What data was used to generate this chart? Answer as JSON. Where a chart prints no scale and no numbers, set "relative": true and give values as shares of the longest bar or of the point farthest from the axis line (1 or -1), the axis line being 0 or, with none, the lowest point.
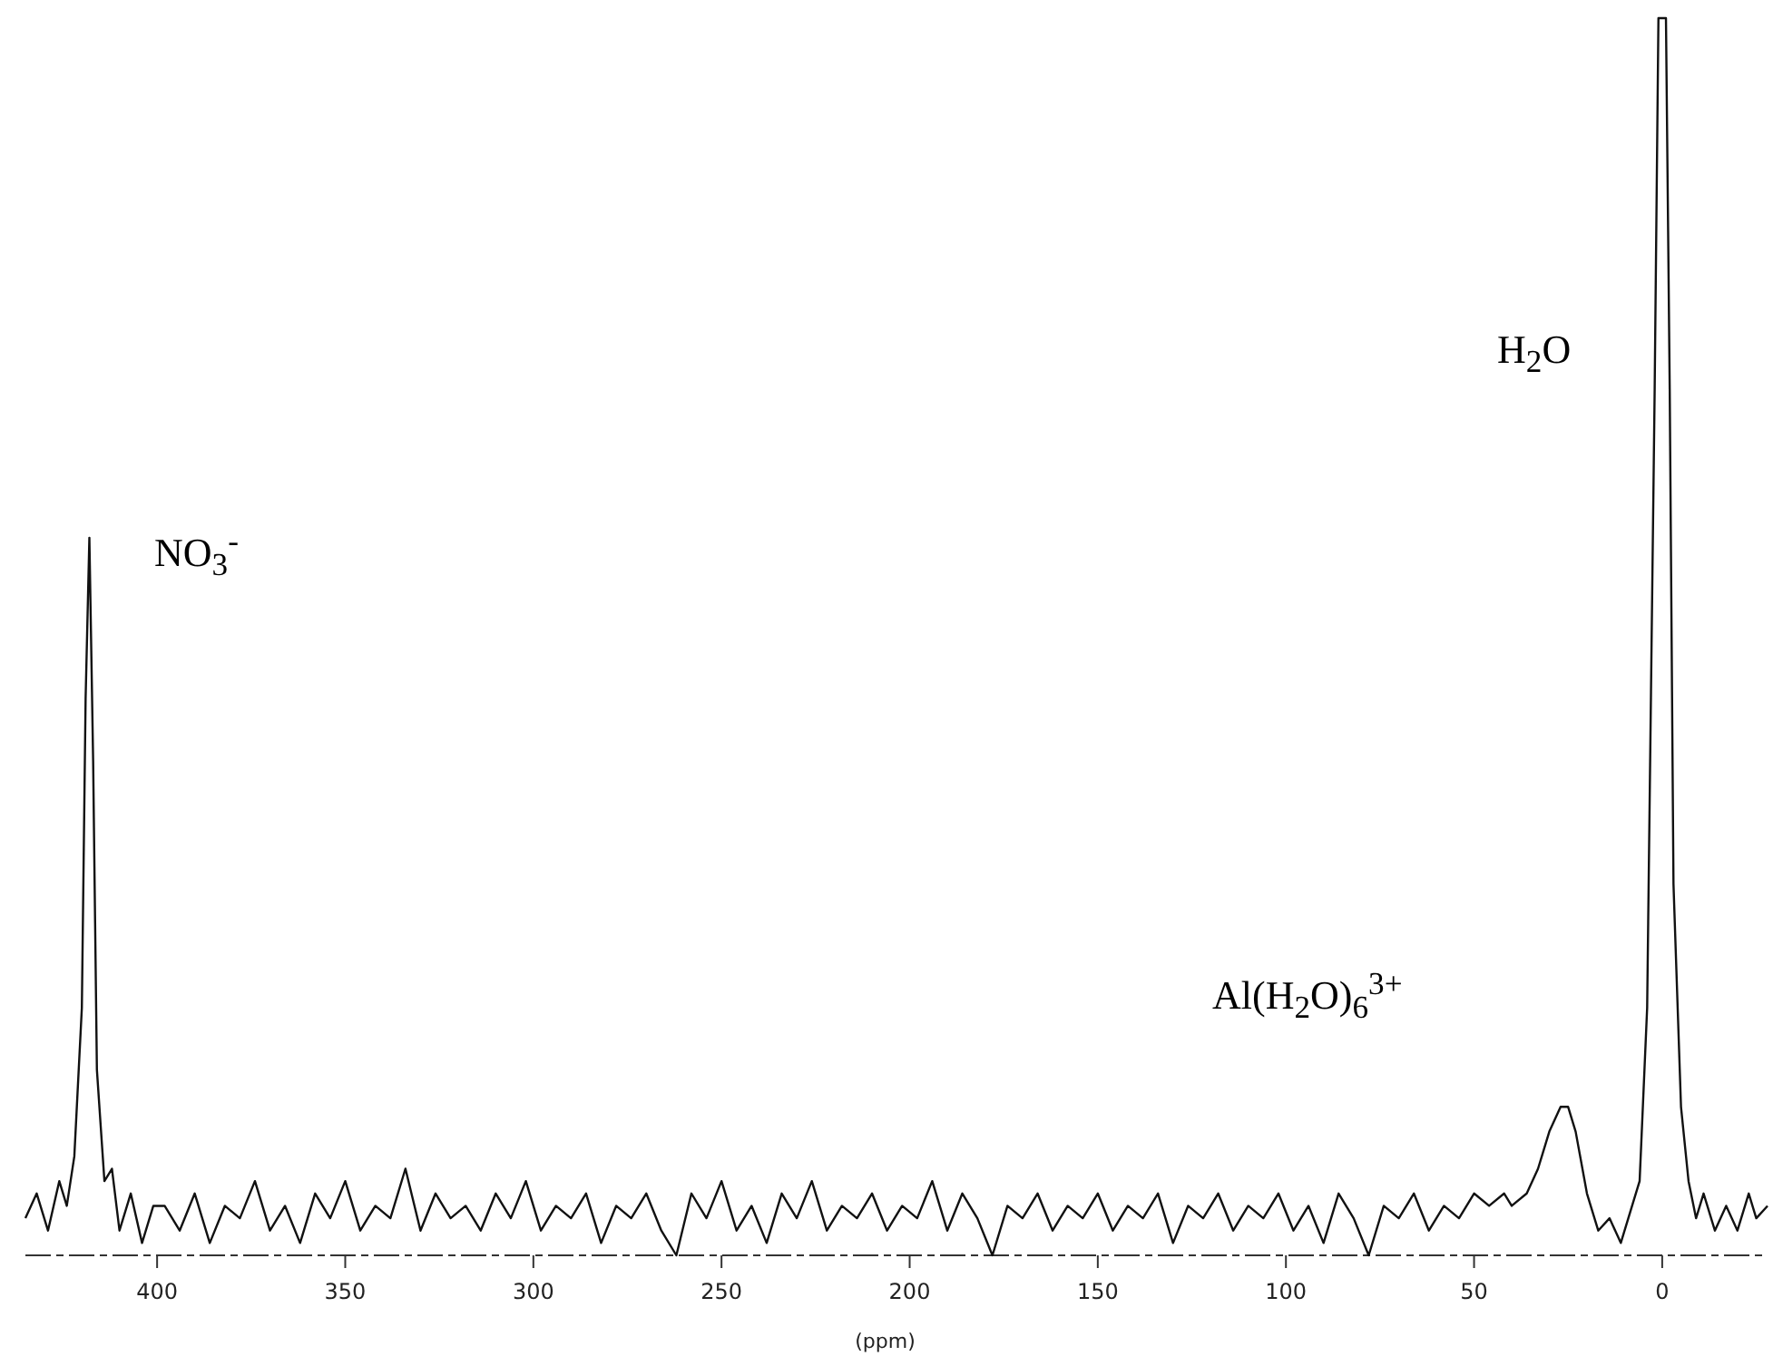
{
  "chart_data": {
    "type": "line",
    "relative": true,
    "xlabel": "(ppm)",
    "xlim": [
      435,
      -28
    ],
    "xticks": [
      400,
      350,
      300,
      250,
      200,
      150,
      100,
      50,
      0
    ],
    "grid": false,
    "marker": "none",
    "line_style": "solid",
    "annotations": [
      "NO$_{3}$$^{-}$",
      "H$_{2}$O",
      "Al(H$_{2}$O)$_{6}$$^{3+}$"
    ],
    "series": [
      {
        "color": "#111111",
        "x": [
          435,
          432,
          429,
          426,
          424,
          422,
          420,
          419,
          418,
          417,
          416,
          414,
          412,
          410,
          407,
          404,
          401,
          398,
          394,
          390,
          386,
          382,
          378,
          374,
          370,
          366,
          362,
          358,
          354,
          350,
          346,
          342,
          338,
          334,
          330,
          326,
          322,
          318,
          314,
          310,
          306,
          302,
          298,
          294,
          290,
          286,
          282,
          278,
          274,
          270,
          266,
          262,
          258,
          254,
          250,
          246,
          242,
          238,
          234,
          230,
          226,
          222,
          218,
          214,
          210,
          206,
          202,
          198,
          194,
          190,
          186,
          182,
          178,
          174,
          170,
          166,
          162,
          158,
          154,
          150,
          146,
          142,
          138,
          134,
          130,
          126,
          122,
          118,
          114,
          110,
          106,
          102,
          98,
          94,
          90,
          86,
          82,
          78,
          74,
          70,
          66,
          62,
          58,
          54,
          50,
          46,
          42,
          40,
          36,
          33,
          30,
          27,
          25,
          23,
          20,
          17,
          14,
          11,
          8,
          6,
          4,
          2,
          1,
          -1,
          -2,
          -3,
          -5,
          -7,
          -9,
          -11,
          -14,
          -17,
          -20,
          -23,
          -25,
          -28
        ],
        "values": [
          0.03,
          0.05,
          0.02,
          0.06,
          0.04,
          0.08,
          0.2,
          0.45,
          0.58,
          0.4,
          0.15,
          0.06,
          0.07,
          0.02,
          0.05,
          0.01,
          0.04,
          0.04,
          0.02,
          0.05,
          0.01,
          0.04,
          0.03,
          0.06,
          0.02,
          0.04,
          0.01,
          0.05,
          0.03,
          0.06,
          0.02,
          0.04,
          0.03,
          0.07,
          0.02,
          0.05,
          0.03,
          0.04,
          0.02,
          0.05,
          0.03,
          0.06,
          0.02,
          0.04,
          0.03,
          0.05,
          0.01,
          0.04,
          0.03,
          0.05,
          0.02,
          0.0,
          0.05,
          0.03,
          0.06,
          0.02,
          0.04,
          0.01,
          0.05,
          0.03,
          0.06,
          0.02,
          0.04,
          0.03,
          0.05,
          0.02,
          0.04,
          0.03,
          0.06,
          0.02,
          0.05,
          0.03,
          0.0,
          0.04,
          0.03,
          0.05,
          0.02,
          0.04,
          0.03,
          0.05,
          0.02,
          0.04,
          0.03,
          0.05,
          0.01,
          0.04,
          0.03,
          0.05,
          0.02,
          0.04,
          0.03,
          0.05,
          0.02,
          0.04,
          0.01,
          0.05,
          0.03,
          0.0,
          0.04,
          0.03,
          0.05,
          0.02,
          0.04,
          0.03,
          0.05,
          0.04,
          0.05,
          0.04,
          0.05,
          0.07,
          0.1,
          0.12,
          0.12,
          0.1,
          0.05,
          0.02,
          0.03,
          0.01,
          0.04,
          0.06,
          0.2,
          0.7,
          1,
          1,
          0.7,
          0.3,
          0.12,
          0.06,
          0.03,
          0.05,
          0.02,
          0.04,
          0.02,
          0.05,
          0.03,
          0.04
        ]
      }
    ]
  }
}
